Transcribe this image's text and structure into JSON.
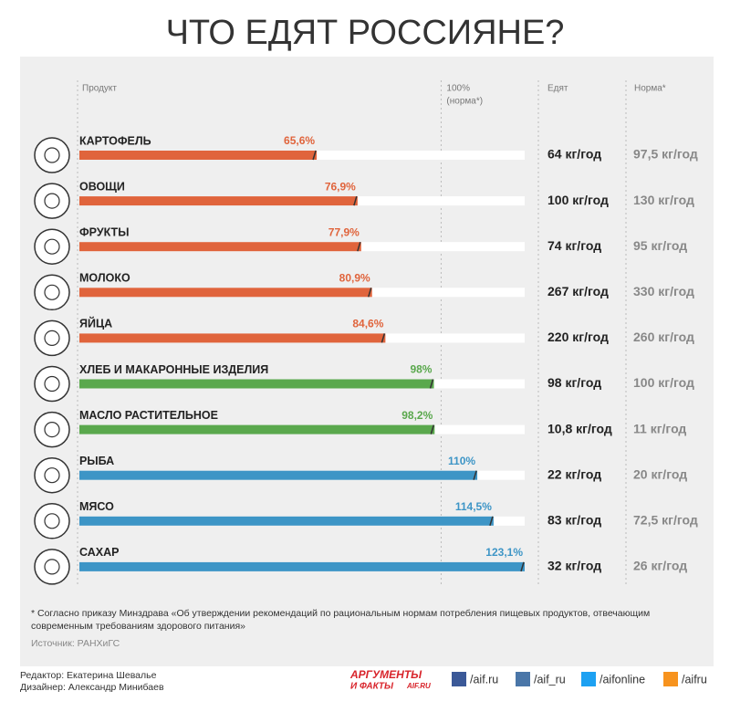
{
  "chart_data": {
    "type": "bar",
    "title": "ЧТО ЕДЯТ РОССИЯНЕ?",
    "column_headers": {
      "product": "Продукт",
      "eaten": "Едят",
      "norm": "Норма*"
    },
    "categories": [
      "КАРТОФЕЛЬ",
      "ОВОЩИ",
      "ФРУКТЫ",
      "МОЛОКО",
      "ЯЙЦА",
      "ХЛЕБ И МАКАРОННЫЕ ИЗДЕЛИЯ",
      "МАСЛО РАСТИТЕЛЬНОЕ",
      "РЫБА",
      "МЯСО",
      "САХАР"
    ],
    "values": [
      65.6,
      76.9,
      77.9,
      80.9,
      84.6,
      98,
      98.2,
      110,
      114.5,
      123.1
    ],
    "value_labels": [
      "65,6%",
      "76,9%",
      "77,9%",
      "80,9%",
      "84,6%",
      "98%",
      "98,2%",
      "110%",
      "114,5%",
      "123,1%"
    ],
    "colors": [
      "#e0643c",
      "#e0643c",
      "#e0643c",
      "#e0643c",
      "#e0643c",
      "#5aa84d",
      "#5aa84d",
      "#3d95c6",
      "#3d95c6",
      "#3d95c6"
    ],
    "eaten": [
      "64 кг/год",
      "100 кг/год",
      "74 кг/год",
      "267 кг/год",
      "220 кг/год",
      "98 кг/год",
      "10,8 кг/год",
      "22 кг/год",
      "83 кг/год",
      "32 кг/год"
    ],
    "norm": [
      "97,5 кг/год",
      "130 кг/год",
      "95 кг/год",
      "330 кг/год",
      "260 кг/год",
      "100 кг/год",
      "11 кг/год",
      "20 кг/год",
      "72,5 кг/год",
      "26 кг/год"
    ],
    "xlim": [
      0,
      123.1
    ],
    "xticks": [
      {
        "value": 100,
        "label": "100%"
      }
    ],
    "xtick_note": "(норма*)",
    "footnote": "* Согласно приказу Минздрава «Об утверждении рекомендаций по рациональным нормам потребления пищевых продуктов, отвечающим современным требованиям здорового питания»",
    "source": "Источник: РАНХиГС"
  },
  "credits": {
    "editor": "Редактор: Екатерина Шевалье",
    "designer": "Дизайнер: Александр Минибаев"
  },
  "logo": {
    "line1": "АРГУМЕНТЫ",
    "line2": "И ФАКТЫ",
    "site": "AIF.RU"
  },
  "social": [
    "/aif.ru",
    "/aif_ru",
    "/aifonline",
    "/aifru"
  ]
}
